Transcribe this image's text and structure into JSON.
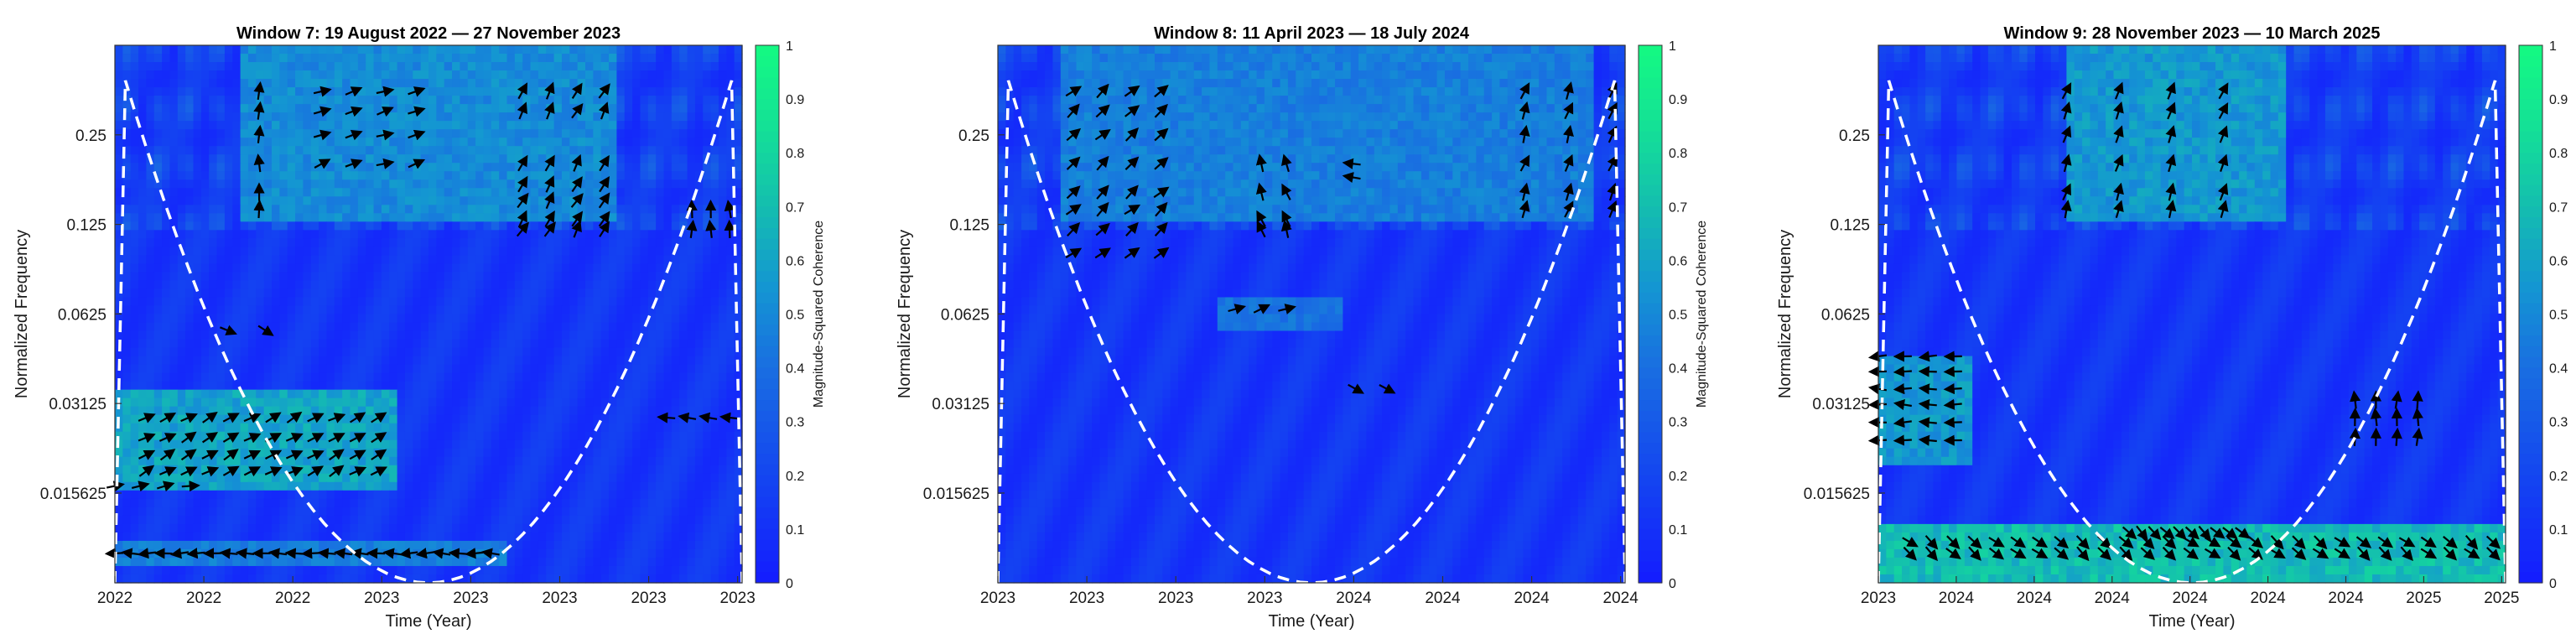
{
  "chart_data": [
    {
      "type": "heatmap",
      "title": "Window 7: 19 August 2022 — 27 November 2023",
      "xlabel": "Time (Year)",
      "ylabel": "Normalized Frequency",
      "x_tick_labels": [
        "2022",
        "2022",
        "2022",
        "2023",
        "2023",
        "2023",
        "2023",
        "2023"
      ],
      "y_tick_labels": [
        "0.25",
        "0.125",
        "0.0625",
        "0.03125",
        "0.015625"
      ],
      "y_tick_values": [
        0.25,
        0.125,
        0.0625,
        0.03125,
        0.015625
      ],
      "ylim": [
        0.0078,
        0.5
      ],
      "y_scale": "log2",
      "colorbar": {
        "label": "Magnitude-Squared Coherence",
        "range": [
          0,
          1
        ],
        "ticks": [
          "0",
          "0.1",
          "0.2",
          "0.3",
          "0.4",
          "0.5",
          "0.6",
          "0.7",
          "0.8",
          "0.9",
          "1"
        ]
      },
      "cone_of_influence": true,
      "high_coherence_bands": [
        {
          "t_range": [
            0.0,
            0.45
          ],
          "freq_range": [
            0.016,
            0.035
          ],
          "coherence": 0.65
        },
        {
          "t_range": [
            0.0,
            0.62
          ],
          "freq_range": [
            0.009,
            0.011
          ],
          "coherence": 0.5
        },
        {
          "t_range": [
            0.2,
            0.8
          ],
          "freq_range": [
            0.13,
            0.5
          ],
          "coherence": 0.55
        }
      ]
    },
    {
      "type": "heatmap",
      "title": "Window 8: 11 April 2023 — 18 July 2024",
      "xlabel": "Time (Year)",
      "ylabel": "Normalized Frequency",
      "x_tick_labels": [
        "2023",
        "2023",
        "2023",
        "2023",
        "2024",
        "2024",
        "2024",
        "2024"
      ],
      "y_tick_labels": [
        "0.25",
        "0.125",
        "0.0625",
        "0.03125",
        "0.015625"
      ],
      "y_tick_values": [
        0.25,
        0.125,
        0.0625,
        0.03125,
        0.015625
      ],
      "ylim": [
        0.0078,
        0.5
      ],
      "y_scale": "log2",
      "colorbar": {
        "label": "Magnitude-Squared Coherence",
        "range": [
          0,
          1
        ],
        "ticks": [
          "0",
          "0.1",
          "0.2",
          "0.3",
          "0.4",
          "0.5",
          "0.6",
          "0.7",
          "0.8",
          "0.9",
          "1"
        ]
      },
      "cone_of_influence": true,
      "high_coherence_bands": [
        {
          "t_range": [
            0.1,
            0.95
          ],
          "freq_range": [
            0.13,
            0.5
          ],
          "coherence": 0.5
        },
        {
          "t_range": [
            0.35,
            0.55
          ],
          "freq_range": [
            0.055,
            0.07
          ],
          "coherence": 0.45
        }
      ]
    },
    {
      "type": "heatmap",
      "title": "Window 9: 28 November 2023 — 10 March 2025",
      "xlabel": "Time (Year)",
      "ylabel": "Normalized Frequency",
      "x_tick_labels": [
        "2023",
        "2024",
        "2024",
        "2024",
        "2024",
        "2024",
        "2024",
        "2025",
        "2025"
      ],
      "y_tick_labels": [
        "0.25",
        "0.125",
        "0.0625",
        "0.03125",
        "0.015625"
      ],
      "y_tick_values": [
        0.25,
        0.125,
        0.0625,
        0.03125,
        0.015625
      ],
      "ylim": [
        0.0078,
        0.5
      ],
      "y_scale": "log2",
      "colorbar": {
        "label": "Magnitude-Squared Coherence",
        "range": [
          0,
          1
        ],
        "ticks": [
          "0",
          "0.1",
          "0.2",
          "0.3",
          "0.4",
          "0.5",
          "0.6",
          "0.7",
          "0.8",
          "0.9",
          "1"
        ]
      },
      "cone_of_influence": true,
      "high_coherence_bands": [
        {
          "t_range": [
            0.0,
            1.0
          ],
          "freq_range": [
            0.008,
            0.012
          ],
          "coherence": 0.75
        },
        {
          "t_range": [
            0.0,
            0.15
          ],
          "freq_range": [
            0.02,
            0.045
          ],
          "coherence": 0.6
        },
        {
          "t_range": [
            0.3,
            0.65
          ],
          "freq_range": [
            0.13,
            0.5
          ],
          "coherence": 0.6
        }
      ]
    }
  ]
}
